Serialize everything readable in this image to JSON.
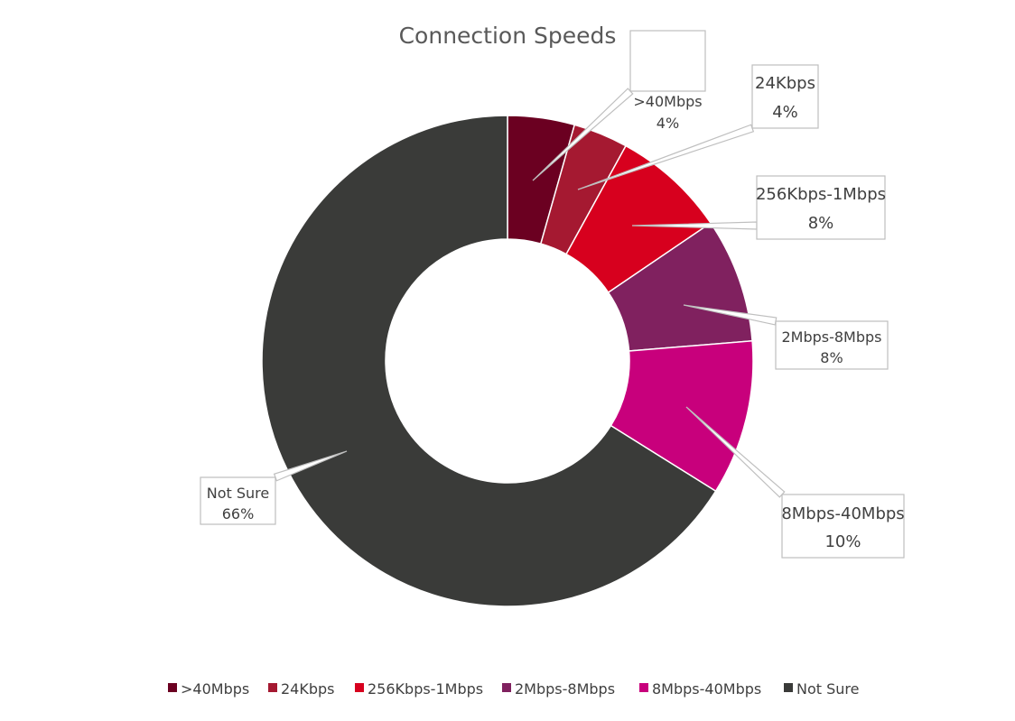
{
  "chart_data": {
    "type": "pie",
    "variant": "donut",
    "title": "Connection Speeds",
    "categories": [
      ">40Mbps",
      "24Kbps",
      "256Kbps-1Mbps",
      "2Mbps-8Mbps",
      "8Mbps-40Mbps",
      "Not Sure"
    ],
    "values": [
      4.4,
      3.6,
      7.5,
      8.2,
      10.2,
      66.1
    ],
    "data_labels": [
      "4%",
      "4%",
      "8%",
      "8%",
      "10%",
      "66%"
    ],
    "colors": [
      "#6b0021",
      "#a51931",
      "#d7001e",
      "#80215f",
      "#c8007c",
      "#3a3b39"
    ],
    "legend": {
      "position": "bottom"
    }
  }
}
